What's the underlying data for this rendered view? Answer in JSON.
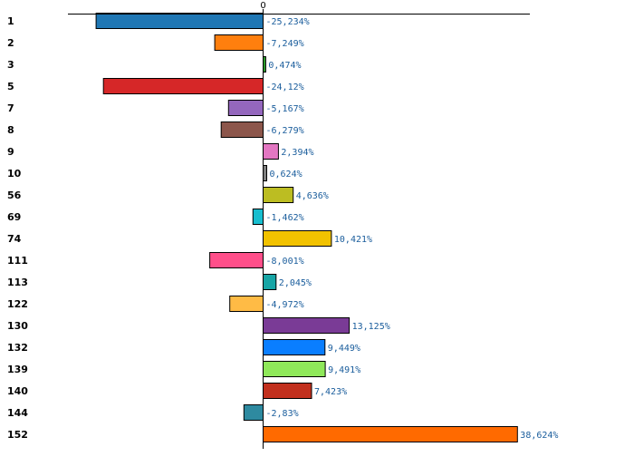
{
  "chart_data": {
    "type": "bar",
    "orientation": "horizontal",
    "title": "",
    "xlabel": "",
    "ylabel": "",
    "xlim": [
      -29.5,
      40.5
    ],
    "zero_tick_label": "0",
    "categories": [
      "1",
      "2",
      "3",
      "5",
      "7",
      "8",
      "9",
      "10",
      "56",
      "69",
      "74",
      "111",
      "113",
      "122",
      "130",
      "132",
      "139",
      "140",
      "144",
      "152"
    ],
    "values": [
      -25.234,
      -7.249,
      0.474,
      -24.12,
      -5.167,
      -6.279,
      2.394,
      0.624,
      4.636,
      -1.462,
      10.421,
      -8.001,
      2.045,
      -4.972,
      13.125,
      9.449,
      9.491,
      7.423,
      -2.83,
      38.624
    ],
    "value_labels": [
      "-25,234%",
      "-7,249%",
      "0,474%",
      "-24,12%",
      "-5,167%",
      "-6,279%",
      "2,394%",
      "0,624%",
      "4,636%",
      "-1,462%",
      "10,421%",
      "-8,001%",
      "2,045%",
      "-4,972%",
      "13,125%",
      "9,449%",
      "9,491%",
      "7,423%",
      "-2,83%",
      "38,624%"
    ],
    "colors": [
      "#1f77b4",
      "#ff7f0e",
      "#2ca02c",
      "#d62728",
      "#9467bd",
      "#8c564b",
      "#e377c2",
      "#7f7f7f",
      "#bcbd22",
      "#17becf",
      "#f2c200",
      "#ff4f8a",
      "#17a5a5",
      "#ffbb45",
      "#7a3b96",
      "#0a7eff",
      "#8fe85a",
      "#c2301e",
      "#2e8aa0",
      "#ff6a00"
    ],
    "value_label_color": "#1a5d9c",
    "axis_color": "#000000"
  }
}
